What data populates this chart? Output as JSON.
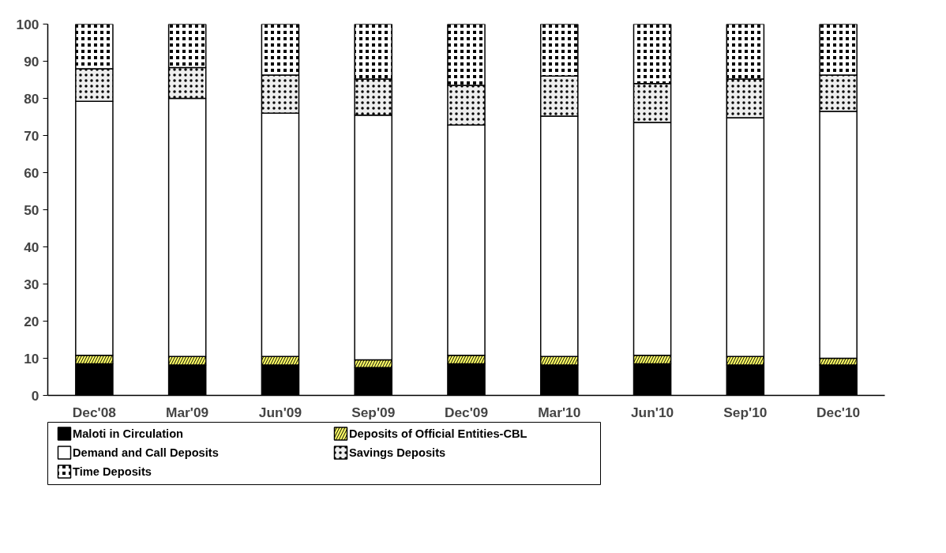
{
  "chart_data": {
    "type": "bar",
    "stacked": true,
    "categories": [
      "Dec'08",
      "Mar'09",
      "Jun'09",
      "Sep'09",
      "Dec'09",
      "Mar'10",
      "Jun'10",
      "Sep'10",
      "Dec'10"
    ],
    "series": [
      {
        "name": "Maloti in Circulation",
        "color": "#000000",
        "values": [
          8.5,
          8.2,
          8.2,
          7.5,
          8.5,
          8.2,
          8.5,
          8.2,
          8.2
        ]
      },
      {
        "name": "Deposits of Official Entities-CBL",
        "color": "#ffff66",
        "values": [
          2.3,
          2.3,
          2.3,
          2.1,
          2.3,
          2.3,
          2.3,
          2.3,
          1.8
        ]
      },
      {
        "name": "Demand and Call Deposits",
        "color": "#ffffff",
        "values": [
          68.4,
          69.5,
          65.5,
          65.9,
          62.0,
          64.7,
          62.7,
          64.3,
          66.5
        ]
      },
      {
        "name": "Savings Deposits",
        "color": "#eeeeee",
        "values": [
          8.8,
          8.3,
          10.3,
          9.7,
          10.7,
          10.8,
          10.5,
          10.4,
          9.8
        ]
      },
      {
        "name": "Time Deposits",
        "color": "#000000",
        "values": [
          12.0,
          11.7,
          13.7,
          14.8,
          16.5,
          14.0,
          16.0,
          14.8,
          13.7
        ]
      }
    ],
    "ylim": [
      0,
      100
    ],
    "yticks": [
      0,
      10,
      20,
      30,
      40,
      50,
      60,
      70,
      80,
      90,
      100
    ],
    "grid": false,
    "legend": "bottom"
  }
}
